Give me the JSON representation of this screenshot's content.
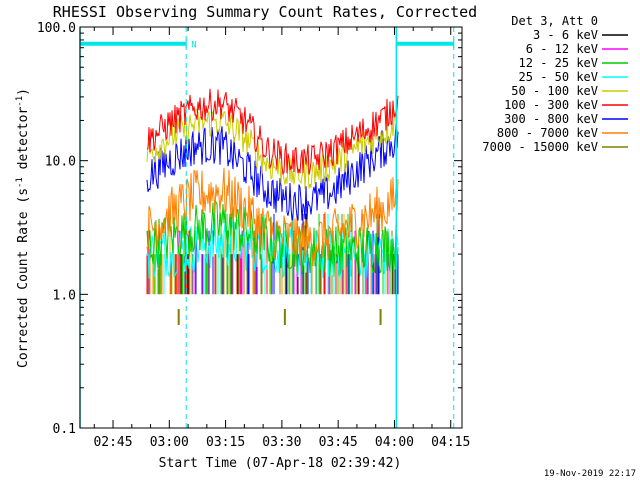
{
  "chart_data": {
    "type": "line",
    "title": "RHESSI Observing Summary Count Rates, Corrected",
    "xlabel": "Start Time (07-Apr-18 02:39:42)",
    "ylabel_main": "Corrected Count Rate (s",
    "ylabel_sup": "-1",
    "ylabel_tail": " detector",
    "ylabel_sup2": "-1",
    "ylabel_end": ")",
    "yscale": "log",
    "ylim": [
      0.1,
      100.0
    ],
    "y_ticks": [
      {
        "value": 100.0,
        "label": "100.0"
      },
      {
        "value": 10.0,
        "label": "10.0"
      },
      {
        "value": 1.0,
        "label": "1.0"
      },
      {
        "value": 0.1,
        "label": "0.1"
      }
    ],
    "xlim_minutes": [
      156.2,
      258.0
    ],
    "x_ticks": [
      {
        "minutes": 165,
        "label": "02:45"
      },
      {
        "minutes": 180,
        "label": "03:00"
      },
      {
        "minutes": 195,
        "label": "03:15"
      },
      {
        "minutes": 210,
        "label": "03:30"
      },
      {
        "minutes": 225,
        "label": "03:45"
      },
      {
        "minutes": 240,
        "label": "04:00"
      },
      {
        "minutes": 255,
        "label": "04:15"
      }
    ],
    "legend_title": "Det 3, Att 0",
    "legend_position": "right",
    "series": [
      {
        "name": "3 - 6 keV",
        "color": "#000000"
      },
      {
        "name": "6 - 12 keV",
        "color": "#ff00ff"
      },
      {
        "name": "12 - 25 keV",
        "color": "#00cc00"
      },
      {
        "name": "25 - 50 keV",
        "color": "#00ffff"
      },
      {
        "name": "50 - 100 keV",
        "color": "#cccc00"
      },
      {
        "name": "100 - 300 keV",
        "color": "#ff0000"
      },
      {
        "name": "300 - 800 keV",
        "color": "#0000ff"
      },
      {
        "name": "800 - 7000 keV",
        "color": "#ff8000"
      },
      {
        "name": "7000 - 15000 keV",
        "color": "#808000"
      }
    ],
    "envelope_series": [
      {
        "name": "100 - 300 keV",
        "color": "#ff0000",
        "x": [
          174,
          180,
          187,
          194,
          200,
          206,
          212,
          218,
          224,
          231,
          238,
          241
        ],
        "y": [
          14,
          19,
          25,
          27,
          20,
          12,
          10,
          10,
          12,
          16,
          22,
          28
        ]
      },
      {
        "name": "50 - 100 keV",
        "color": "#cccc00",
        "x": [
          174,
          180,
          187,
          194,
          200,
          206,
          212,
          218,
          224,
          231,
          238,
          241
        ],
        "y": [
          11,
          15,
          19,
          20,
          15,
          9.5,
          8,
          8,
          9.5,
          13,
          17,
          21
        ]
      },
      {
        "name": "300 - 800 keV",
        "color": "#0000ff",
        "x": [
          174,
          180,
          187,
          194,
          200,
          206,
          212,
          218,
          224,
          231,
          238,
          241
        ],
        "y": [
          7.5,
          10,
          13,
          13,
          9,
          6,
          5,
          5,
          6,
          9,
          13,
          15
        ]
      },
      {
        "name": "800 - 7000 keV",
        "color": "#ff8000",
        "x": [
          174,
          180,
          187,
          194,
          200,
          206,
          212,
          218,
          224,
          231,
          238,
          241
        ],
        "y": [
          3,
          4,
          5.5,
          6,
          4.5,
          3,
          2.6,
          2.5,
          2.8,
          3.6,
          4.5,
          5.5
        ]
      },
      {
        "name": "12 - 25 keV",
        "color": "#00cc00",
        "x": [
          174,
          185,
          195,
          205,
          215,
          225,
          241
        ],
        "y": [
          2.3,
          3,
          3.4,
          2.6,
          2.2,
          2.1,
          2.3
        ]
      },
      {
        "name": "25 - 50 keV",
        "color": "#00ffff",
        "x": [
          174,
          185,
          195,
          205,
          215,
          225,
          241
        ],
        "y": [
          2,
          2.2,
          2.5,
          2.2,
          2,
          2,
          2.1
        ]
      }
    ],
    "flag_bars": [
      {
        "label": "N",
        "x_start": 156.2,
        "x_end": 184.5,
        "y": 75
      },
      {
        "label": "",
        "x_start": 240.5,
        "x_end": 255.8,
        "y": 75
      }
    ],
    "boundaries": {
      "solid": [
        156.2,
        240.5
      ],
      "dashed": [
        184.5,
        255.8
      ]
    },
    "markers": [
      {
        "minutes": 182.5,
        "color": "#808000"
      },
      {
        "minutes": 210.8,
        "color": "#808000"
      },
      {
        "minutes": 236.3,
        "color": "#808000"
      }
    ],
    "grid": false
  },
  "footer": {
    "timestamp": "19-Nov-2019 22:17"
  },
  "colors": {
    "flag": "#00e5e5",
    "boundary": "#00e5e5"
  }
}
